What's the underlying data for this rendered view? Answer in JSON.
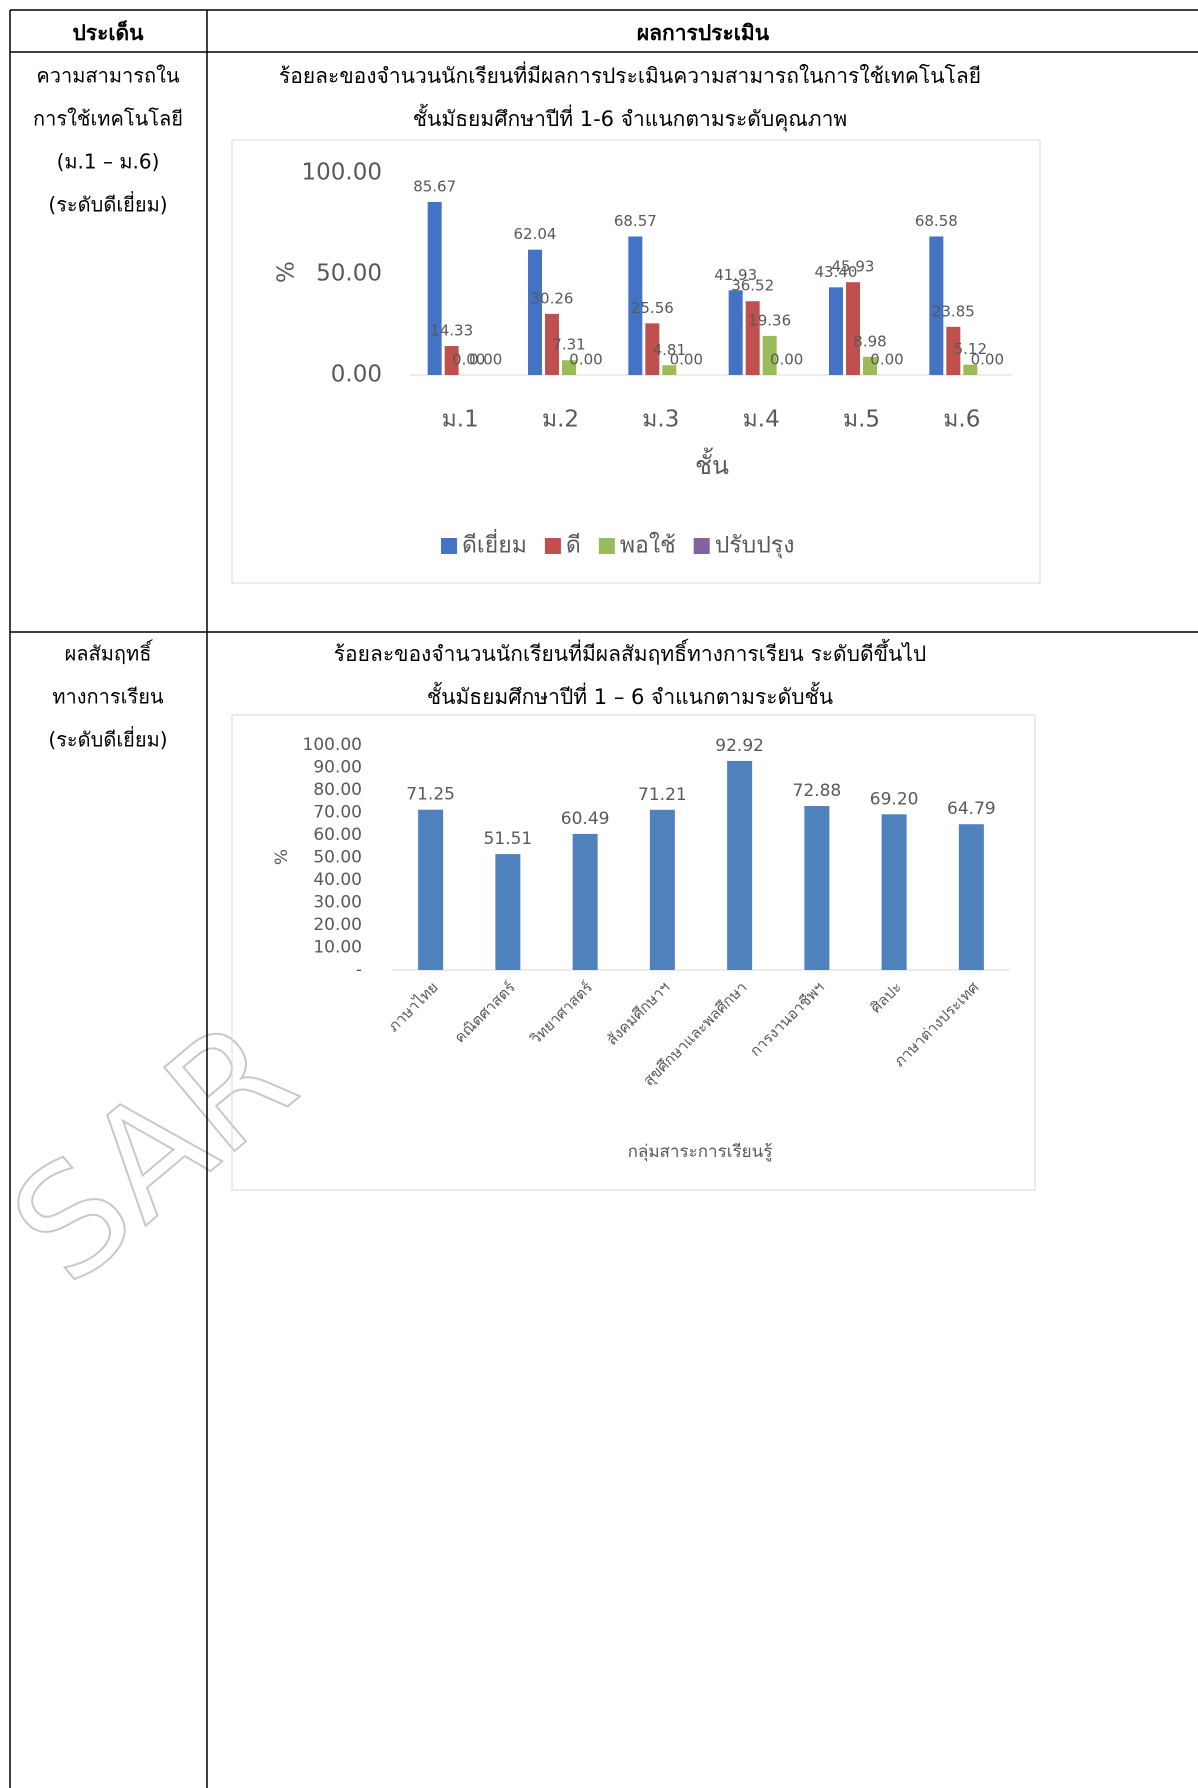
{
  "table": {
    "header": [
      "ประเด็น",
      "ผลการประเมิน"
    ],
    "rows": [
      {
        "topic": [
          "ความสามารถใน",
          "การใช้เทคโนโลยี",
          "(ม.1 – ม.6)",
          "(ระดับดีเยี่ยม)"
        ]
      },
      {
        "topic": [
          "ผลสัมฤทธิ์",
          "ทางการเรียน",
          "(ระดับดีเยี่ยม)"
        ]
      }
    ]
  },
  "watermark": "SAR",
  "chart_data": [
    {
      "type": "bar",
      "title": "ร้อยละของจำนวนนักเรียนที่มีผลการประเมินความสามารถในการใช้เทคโนโลยี",
      "subtitle": "ชั้นมัธยมศึกษาปีที่ 1-6 จำแนกตามระดับคุณภาพ",
      "x_label": "ชั้น",
      "y_label": "%",
      "categories": [
        "ม.1",
        "ม.2",
        "ม.3",
        "ม.4",
        "ม.5",
        "ม.6"
      ],
      "series": [
        {
          "name": "ดีเยี่ยม",
          "color": "#4472c4",
          "values": [
            85.67,
            62.04,
            68.57,
            41.93,
            43.4,
            68.58
          ],
          "value_labels": [
            "85.67",
            "62.04",
            "68.57",
            "41.93",
            "43.40",
            "68.58"
          ]
        },
        {
          "name": "ดี",
          "color": "#c0504d",
          "values": [
            14.33,
            30.26,
            25.56,
            36.52,
            45.93,
            23.85
          ],
          "value_labels": [
            "14.33",
            "30.26",
            "25.56",
            "36.52",
            "45.93",
            "23.85"
          ]
        },
        {
          "name": "พอใช้",
          "color": "#9bbb59",
          "values": [
            0,
            7.31,
            4.81,
            19.36,
            8.98,
            5.12
          ],
          "value_labels": [
            "0.00",
            "7.31",
            "4.81",
            "19.36",
            "8.98",
            "5.12"
          ]
        },
        {
          "name": "ปรับปรุง",
          "color": "#8064a2",
          "values": [
            0,
            0,
            0,
            0,
            0,
            0
          ],
          "value_labels": [
            "0.00",
            "0.00",
            "0.00",
            "0.00",
            "0.00",
            "0.00"
          ]
        }
      ],
      "ylim": [
        0,
        100
      ],
      "yticks": [
        {
          "value": 0,
          "label": "0.00"
        },
        {
          "value": 50,
          "label": "50.00"
        },
        {
          "value": 100,
          "label": "100.00"
        }
      ],
      "grid": false,
      "legend": "bottom"
    },
    {
      "type": "bar",
      "title": "ร้อยละของจำนวนนักเรียนที่มีผลสัมฤทธิ์ทางการเรียน ระดับดีขึ้นไป",
      "subtitle": "ชั้นมัธยมศึกษาปีที่ 1 – 6 จำแนกตามระดับชั้น",
      "x_label": "กลุ่มสาระการเรียนรู้",
      "y_label": "%",
      "categories": [
        "ภาษาไทย",
        "คณิตศาสตร์",
        "วิทยาศาสตร์",
        "สังคมศึกษาฯ",
        "สุขศึกษาและพลศึกษา",
        "การงานอาชีพฯ",
        "ศิลปะ",
        "ภาษาต่างประเทศ"
      ],
      "values": [
        71.25,
        51.51,
        60.49,
        71.21,
        92.92,
        72.88,
        69.2,
        64.79
      ],
      "value_labels": [
        "71.25",
        "51.51",
        "60.49",
        "71.21",
        "92.92",
        "72.88",
        "69.20",
        "64.79"
      ],
      "color": "#4f81bd",
      "ylim": [
        0,
        100
      ],
      "yticks": [
        {
          "value": 0,
          "label": "-"
        },
        {
          "value": 10,
          "label": "10.00"
        },
        {
          "value": 20,
          "label": "20.00"
        },
        {
          "value": 30,
          "label": "30.00"
        },
        {
          "value": 40,
          "label": "40.00"
        },
        {
          "value": 50,
          "label": "50.00"
        },
        {
          "value": 60,
          "label": "60.00"
        },
        {
          "value": 70,
          "label": "70.00"
        },
        {
          "value": 80,
          "label": "80.00"
        },
        {
          "value": 90,
          "label": "90.00"
        },
        {
          "value": 100,
          "label": "100.00"
        }
      ],
      "grid": false
    }
  ]
}
